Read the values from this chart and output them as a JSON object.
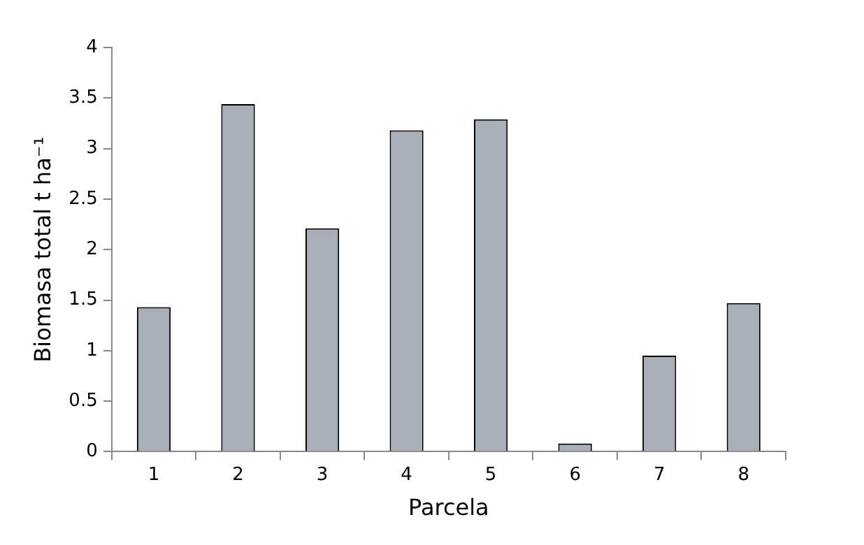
{
  "chart_data": {
    "type": "bar",
    "xlabel": "Parcela",
    "ylabel": "Biomasa total t ha⁻¹",
    "categories": [
      "1",
      "2",
      "3",
      "4",
      "5",
      "6",
      "7",
      "8"
    ],
    "values": [
      1.43,
      3.44,
      2.21,
      3.18,
      3.29,
      0.08,
      0.95,
      1.47
    ],
    "color": "#a9aeb8",
    "ylim": [
      0,
      4
    ],
    "yticks": [
      0,
      0.5,
      1,
      1.5,
      2,
      2.5,
      3,
      3.5,
      4
    ],
    "grid": false,
    "legend": false
  }
}
